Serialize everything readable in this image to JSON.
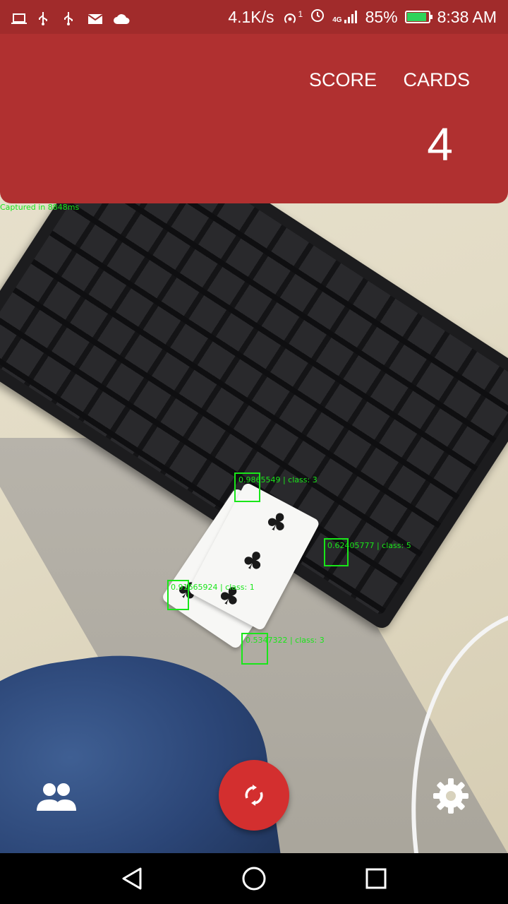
{
  "status_bar": {
    "network_speed": "4.1K/s",
    "battery_percent": "85%",
    "time": "8:38 AM",
    "notification_icons": [
      "laptop-icon",
      "usb-icon",
      "usb-icon",
      "gmail-icon",
      "cloud-icon"
    ],
    "system_icons": [
      "hotspot-icon",
      "alarm-icon",
      "signal-4g-icon",
      "battery-icon"
    ],
    "hotspot_count": "1",
    "signal_label": "4G",
    "battery_color": "#2ed35a"
  },
  "header": {
    "score_label": "SCORE",
    "cards_label": "CARDS",
    "score_value": "",
    "cards_value": "4",
    "color": "#b03030"
  },
  "camera": {
    "capture_text": "Captured in 8848ms",
    "detections": [
      {
        "label": "0.9865549 | class: 3"
      },
      {
        "label": "0.62405777 | class: 5"
      },
      {
        "label": "0.91665924 | class: 1"
      },
      {
        "label": "0.5347322 | class: 3"
      }
    ],
    "overlay_color": "#19e619"
  },
  "controls": {
    "players_icon": "people-icon",
    "refresh_icon": "refresh-icon",
    "settings_icon": "gear-icon",
    "fab_color": "#d32f2f"
  },
  "navbar": {
    "back_icon": "back-triangle-icon",
    "home_icon": "home-circle-icon",
    "recents_icon": "recents-square-icon"
  }
}
